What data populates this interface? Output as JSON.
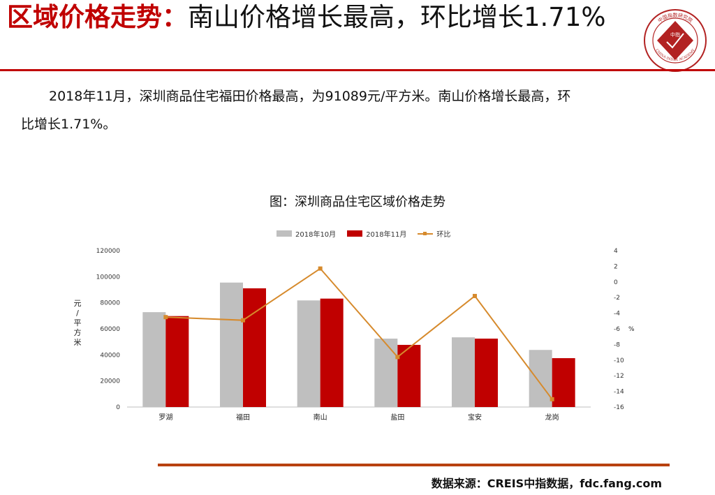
{
  "header": {
    "title_highlight": "区域价格走势：",
    "title_rest": "南山价格增长最高，环比增长1.71%"
  },
  "logo": {
    "name": "china-index-academy-logo",
    "text_cn": "中国指数研究院",
    "text_en": "CHINA INDEX ACADEMY",
    "center_text": "中指"
  },
  "description": {
    "line1": "2018年11月，深圳商品住宅福田价格最高，为91089元/平方米。南山价格增长最高，环",
    "line2": "比增长1.71%。"
  },
  "chart_caption": "图：深圳商品住宅区域价格走势",
  "chart_data": {
    "type": "bar",
    "categories": [
      "罗湖",
      "福田",
      "南山",
      "盐田",
      "宝安",
      "龙岗"
    ],
    "series": [
      {
        "name": "2018年10月",
        "type": "bar",
        "axis": "left",
        "color": "#bfbfbf",
        "values": [
          72800,
          95500,
          81800,
          52500,
          53500,
          43800
        ]
      },
      {
        "name": "2018年11月",
        "type": "bar",
        "axis": "left",
        "color": "#c00000",
        "values": [
          69800,
          91089,
          83200,
          47700,
          52500,
          37500
        ]
      },
      {
        "name": "环比",
        "type": "line",
        "axis": "right",
        "color": "#d68a2c",
        "values": [
          -4.5,
          -4.9,
          1.71,
          -9.6,
          -1.8,
          -15.0
        ]
      }
    ],
    "ylabel": "元/平方米",
    "y2label": "%",
    "ylim": [
      0,
      120000
    ],
    "yticks": [
      "0",
      "20000",
      "40000",
      "60000",
      "80000",
      "100000",
      "120000"
    ],
    "y2lim": [
      -16,
      4
    ],
    "y2ticks": [
      "4",
      "2",
      "0",
      "-2",
      "-4",
      "-6",
      "-8",
      "-10",
      "-12",
      "-14",
      "-16"
    ],
    "legend_position": "top",
    "grid": false
  },
  "source": "数据来源：CREIS中指数据，fdc.fang.com"
}
